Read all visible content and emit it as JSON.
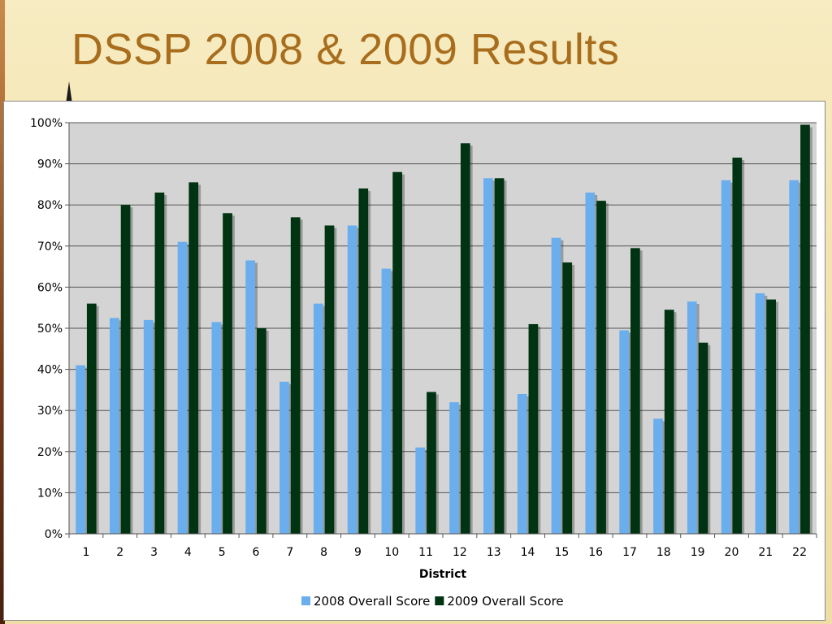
{
  "slide": {
    "title": "DSSP 2008 & 2009 Results"
  },
  "colors": {
    "series_2008": "#6aaeee",
    "series_2009": "#003311",
    "plot_bg": "#d4d4d4",
    "title": "#a86d1d"
  },
  "chart_data": {
    "type": "bar",
    "title": "",
    "xlabel": "District",
    "ylabel": "",
    "ylim": [
      0,
      100
    ],
    "yticks": [
      "0%",
      "10%",
      "20%",
      "30%",
      "40%",
      "50%",
      "60%",
      "70%",
      "80%",
      "90%",
      "100%"
    ],
    "grid": true,
    "legend_position": "bottom",
    "categories": [
      "1",
      "2",
      "3",
      "4",
      "5",
      "6",
      "7",
      "8",
      "9",
      "10",
      "11",
      "12",
      "13",
      "14",
      "15",
      "16",
      "17",
      "18",
      "19",
      "20",
      "21",
      "22"
    ],
    "series": [
      {
        "name": "2008 Overall Score",
        "values": [
          41,
          52.5,
          52,
          71,
          51.5,
          66.5,
          37,
          56,
          75,
          64.5,
          21,
          32,
          86.5,
          34,
          72,
          83,
          49.5,
          28,
          56.5,
          86,
          58.5,
          86
        ]
      },
      {
        "name": "2009 Overall Score",
        "values": [
          56,
          80,
          83,
          85.5,
          78,
          50,
          77,
          75,
          84,
          88,
          34.5,
          95,
          86.5,
          51,
          66,
          81,
          69.5,
          54.5,
          46.5,
          91.5,
          57,
          99.5
        ]
      }
    ]
  }
}
